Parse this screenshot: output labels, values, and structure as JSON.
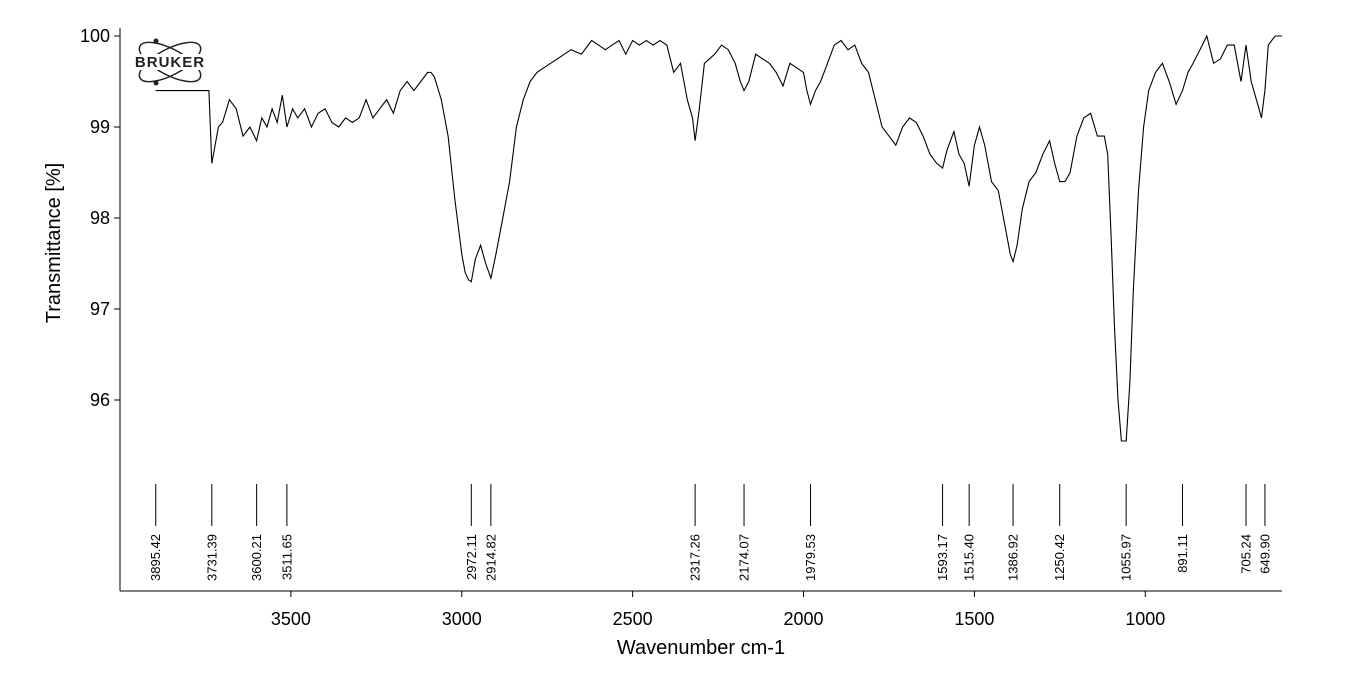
{
  "logo": {
    "text": "BRUKER"
  },
  "chart_data": {
    "type": "line",
    "xlabel": "Wavenumber cm-1",
    "ylabel": "Transmittance [%]",
    "xlim": [
      4000,
      600
    ],
    "ylim": [
      94.8,
      100.2
    ],
    "x_ticks": [
      3500,
      3000,
      2500,
      2000,
      1500,
      1000
    ],
    "y_ticks": [
      96,
      97,
      98,
      99,
      100
    ],
    "grid": false,
    "series": [
      {
        "x": [
          3895.42,
          3740,
          3731.39,
          3712,
          3700,
          3680,
          3660,
          3640,
          3620,
          3600.21,
          3585,
          3570,
          3555,
          3540,
          3525,
          3511.65,
          3495,
          3480,
          3460,
          3440,
          3420,
          3400,
          3380,
          3360,
          3340,
          3320,
          3300,
          3280,
          3260,
          3240,
          3220,
          3200,
          3180,
          3160,
          3140,
          3120,
          3100,
          3090,
          3080,
          3060,
          3040,
          3020,
          3000,
          2990,
          2980,
          2972.11,
          2960,
          2945,
          2930,
          2914.82,
          2900,
          2880,
          2860,
          2840,
          2820,
          2800,
          2780,
          2760,
          2740,
          2720,
          2700,
          2680,
          2650,
          2620,
          2600,
          2580,
          2560,
          2540,
          2520,
          2500,
          2480,
          2460,
          2440,
          2420,
          2400,
          2380,
          2360,
          2340,
          2325,
          2317.26,
          2305,
          2290,
          2275,
          2260,
          2240,
          2220,
          2200,
          2185,
          2174.07,
          2160,
          2140,
          2120,
          2100,
          2080,
          2060,
          2040,
          2020,
          2000,
          1990,
          1979.53,
          1965,
          1950,
          1930,
          1910,
          1890,
          1870,
          1850,
          1830,
          1810,
          1790,
          1770,
          1750,
          1730,
          1710,
          1690,
          1670,
          1650,
          1630,
          1610,
          1593.17,
          1580,
          1560,
          1545,
          1530,
          1515.4,
          1500,
          1485,
          1470,
          1450,
          1430,
          1410,
          1395,
          1386.92,
          1375,
          1360,
          1340,
          1320,
          1300,
          1280,
          1265,
          1250.42,
          1235,
          1220,
          1200,
          1180,
          1160,
          1140,
          1120,
          1110,
          1100,
          1090,
          1080,
          1070,
          1055.97,
          1045,
          1035,
          1020,
          1005,
          990,
          970,
          950,
          930,
          910,
          891.11,
          875,
          860,
          840,
          820,
          800,
          780,
          760,
          740,
          720,
          705.24,
          690,
          675,
          660,
          649.9,
          640,
          630,
          620,
          600
        ],
        "y": [
          99.4,
          99.4,
          98.6,
          99.0,
          99.05,
          99.3,
          99.2,
          98.9,
          99.0,
          98.85,
          99.1,
          99.0,
          99.2,
          99.05,
          99.35,
          99.0,
          99.2,
          99.1,
          99.2,
          99.0,
          99.15,
          99.2,
          99.05,
          99.0,
          99.1,
          99.05,
          99.1,
          99.3,
          99.1,
          99.2,
          99.3,
          99.15,
          99.4,
          99.5,
          99.4,
          99.5,
          99.6,
          99.6,
          99.55,
          99.3,
          98.9,
          98.2,
          97.6,
          97.4,
          97.32,
          97.3,
          97.55,
          97.7,
          97.5,
          97.34,
          97.6,
          98.0,
          98.4,
          99.0,
          99.3,
          99.5,
          99.6,
          99.65,
          99.7,
          99.75,
          99.8,
          99.85,
          99.8,
          99.95,
          99.9,
          99.85,
          99.9,
          99.95,
          99.8,
          99.95,
          99.9,
          99.95,
          99.9,
          99.95,
          99.9,
          99.6,
          99.7,
          99.3,
          99.1,
          98.85,
          99.2,
          99.7,
          99.75,
          99.8,
          99.9,
          99.85,
          99.7,
          99.5,
          99.4,
          99.5,
          99.8,
          99.75,
          99.7,
          99.6,
          99.45,
          99.7,
          99.65,
          99.6,
          99.4,
          99.25,
          99.4,
          99.5,
          99.7,
          99.9,
          99.95,
          99.85,
          99.9,
          99.7,
          99.6,
          99.3,
          99.0,
          98.9,
          98.8,
          99.0,
          99.1,
          99.05,
          98.9,
          98.7,
          98.6,
          98.55,
          98.75,
          98.95,
          98.7,
          98.6,
          98.35,
          98.8,
          99.0,
          98.8,
          98.4,
          98.3,
          97.9,
          97.6,
          97.52,
          97.7,
          98.1,
          98.4,
          98.5,
          98.7,
          98.85,
          98.6,
          98.4,
          98.4,
          98.5,
          98.9,
          99.1,
          99.15,
          98.9,
          98.9,
          98.7,
          97.8,
          96.8,
          96.0,
          95.55,
          95.55,
          96.2,
          97.2,
          98.3,
          99.0,
          99.4,
          99.6,
          99.7,
          99.5,
          99.25,
          99.4,
          99.6,
          99.7,
          99.85,
          100.0,
          99.7,
          99.75,
          99.9,
          99.9,
          99.5,
          99.9,
          99.5,
          99.3,
          99.1,
          99.4,
          99.9,
          99.95,
          100.0,
          100.0
        ]
      }
    ],
    "peaks": [
      "3895.42",
      "3731.39",
      "3600.21",
      "3511.65",
      "2972.11",
      "2914.82",
      "2317.26",
      "2174.07",
      "1979.53",
      "1593.17",
      "1515.40",
      "1386.92",
      "1250.42",
      "1055.97",
      "891.11",
      "705.24",
      "649.90"
    ]
  }
}
